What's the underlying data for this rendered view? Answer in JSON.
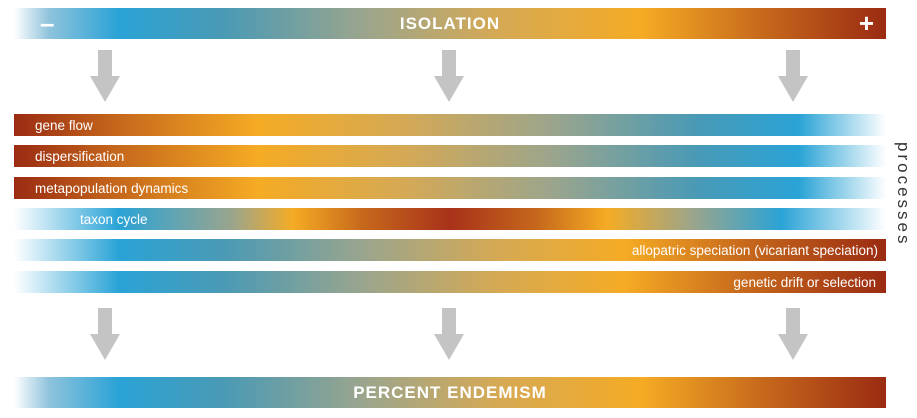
{
  "top_bar": {
    "title": "ISOLATION",
    "minus": "–",
    "plus": "+"
  },
  "processes": [
    {
      "label": "gene flow",
      "direction": "decreasing"
    },
    {
      "label": "dispersification",
      "direction": "decreasing"
    },
    {
      "label": "metapopulation dynamics",
      "direction": "decreasing"
    },
    {
      "label": "taxon cycle",
      "direction": "peak-middle"
    },
    {
      "label": "allopatric speciation (vicariant speciation)",
      "direction": "increasing"
    },
    {
      "label": "genetic drift or selection",
      "direction": "increasing"
    }
  ],
  "side_label": "processes",
  "bottom_bar": {
    "title": "PERCENT ENDEMISM"
  },
  "colors": {
    "blue": "#2aa3d6",
    "orange": "#f5ab24",
    "dark_red": "#9a2b12",
    "arrow_gray": "#c4c4c4"
  }
}
